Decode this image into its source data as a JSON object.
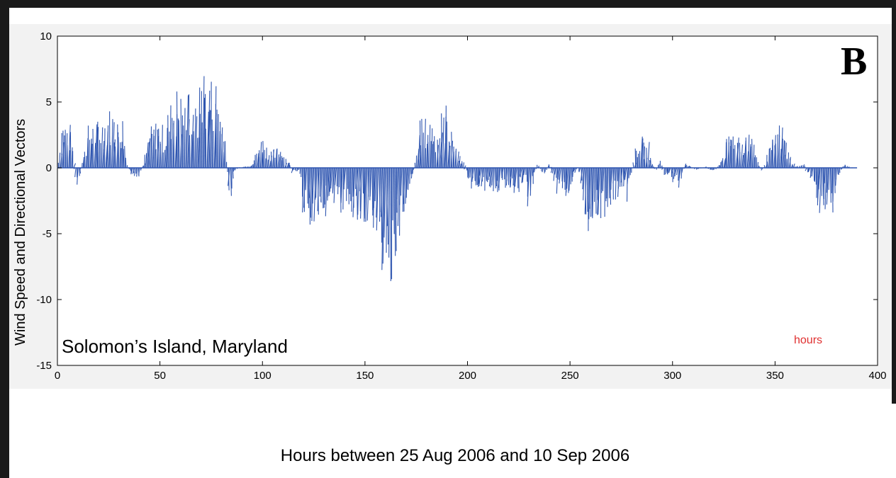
{
  "panel_letter": "B",
  "location_label": "Solomon’s Island, Maryland",
  "hours_annotation": "hours",
  "colors": {
    "vectors": "#2E55B0",
    "axes": "#000000",
    "annotation": "#E03030",
    "plot_background": "#F2F2F2",
    "frame": "#1A1A1A"
  },
  "chart_data": {
    "type": "quiver",
    "title": "",
    "xlabel": "Hours between 25 Aug 2006 and 10 Sep 2006",
    "ylabel": "Wind Speed  and Directional Vectors",
    "xlim": [
      0,
      400
    ],
    "ylim": [
      -15,
      10
    ],
    "xticks": [
      "0",
      "50",
      "100",
      "150",
      "200",
      "250",
      "300",
      "350",
      "400"
    ],
    "yticks": [
      "10",
      "5",
      "0",
      "-5",
      "-10",
      "-15"
    ],
    "grid": false,
    "envelope": [
      [
        0,
        0
      ],
      [
        2,
        3.6
      ],
      [
        5,
        3.7
      ],
      [
        7,
        2.5
      ],
      [
        9,
        -1
      ],
      [
        10,
        -2.2
      ],
      [
        12,
        0.5
      ],
      [
        15,
        3.3
      ],
      [
        18,
        3.6
      ],
      [
        22,
        3.9
      ],
      [
        26,
        4.7
      ],
      [
        28,
        4.2
      ],
      [
        30,
        3.5
      ],
      [
        32,
        4.1
      ],
      [
        34,
        0.3
      ],
      [
        36,
        -0.6
      ],
      [
        38,
        -1.3
      ],
      [
        40,
        -0.8
      ],
      [
        42,
        0.5
      ],
      [
        44,
        2.8
      ],
      [
        47,
        3.6
      ],
      [
        50,
        3.8
      ],
      [
        52,
        2.9
      ],
      [
        54,
        4.5
      ],
      [
        56,
        5.7
      ],
      [
        58,
        6.3
      ],
      [
        60,
        5.9
      ],
      [
        62,
        5.5
      ],
      [
        64,
        6.4
      ],
      [
        66,
        5.2
      ],
      [
        68,
        4.3
      ],
      [
        70,
        8.2
      ],
      [
        72,
        7.5
      ],
      [
        74,
        6.8
      ],
      [
        76,
        7.3
      ],
      [
        78,
        6.8
      ],
      [
        80,
        4.2
      ],
      [
        82,
        2.7
      ],
      [
        83,
        -0.5
      ],
      [
        84,
        -3.0
      ],
      [
        86,
        -0.5
      ],
      [
        88,
        0
      ],
      [
        95,
        0.3
      ],
      [
        98,
        2.0
      ],
      [
        100,
        2.6
      ],
      [
        103,
        1.5
      ],
      [
        106,
        1.4
      ],
      [
        108,
        1.8
      ],
      [
        110,
        1.3
      ],
      [
        113,
        0.5
      ],
      [
        115,
        -0.5
      ],
      [
        118,
        -0.3
      ],
      [
        120,
        -3.5
      ],
      [
        122,
        -4.0
      ],
      [
        124,
        -4.8
      ],
      [
        126,
        -4.2
      ],
      [
        128,
        -3.8
      ],
      [
        130,
        -3.4
      ],
      [
        132,
        -3.8
      ],
      [
        134,
        -3.5
      ],
      [
        136,
        -3.3
      ],
      [
        138,
        -3.8
      ],
      [
        140,
        -3.2
      ],
      [
        142,
        -3.4
      ],
      [
        144,
        -3.6
      ],
      [
        146,
        -4.0
      ],
      [
        148,
        -4.3
      ],
      [
        150,
        -4.8
      ],
      [
        152,
        -5.1
      ],
      [
        154,
        -5.1
      ],
      [
        156,
        -6.2
      ],
      [
        158,
        -7.3
      ],
      [
        160,
        -8.5
      ],
      [
        162,
        -10.0
      ],
      [
        164,
        -9.5
      ],
      [
        166,
        -6.5
      ],
      [
        168,
        -4.8
      ],
      [
        170,
        -3.0
      ],
      [
        172,
        -1.5
      ],
      [
        174,
        -0.2
      ],
      [
        176,
        3.0
      ],
      [
        178,
        4.3
      ],
      [
        180,
        3.4
      ],
      [
        182,
        4.0
      ],
      [
        184,
        3.2
      ],
      [
        186,
        3.4
      ],
      [
        188,
        4.7
      ],
      [
        190,
        5.1
      ],
      [
        192,
        3.0
      ],
      [
        194,
        2.2
      ],
      [
        196,
        1.0
      ],
      [
        198,
        0.5
      ],
      [
        200,
        -0.8
      ],
      [
        202,
        -1.7
      ],
      [
        204,
        -2.0
      ],
      [
        206,
        -1.2
      ],
      [
        208,
        -2.0
      ],
      [
        210,
        -2.2
      ],
      [
        212,
        -1.6
      ],
      [
        214,
        -2.0
      ],
      [
        216,
        -1.7
      ],
      [
        218,
        -1.9
      ],
      [
        220,
        -1.5
      ],
      [
        222,
        -1.8
      ],
      [
        224,
        -2.3
      ],
      [
        226,
        -1.6
      ],
      [
        228,
        -1.0
      ],
      [
        230,
        -3.0
      ],
      [
        232,
        -1.3
      ],
      [
        234,
        0.3
      ],
      [
        236,
        -0.2
      ],
      [
        238,
        -0.5
      ],
      [
        240,
        0.4
      ],
      [
        242,
        -0.8
      ],
      [
        244,
        -2.0
      ],
      [
        246,
        -2.2
      ],
      [
        248,
        -2.3
      ],
      [
        250,
        -1.8
      ],
      [
        252,
        -0.8
      ],
      [
        254,
        0
      ],
      [
        256,
        -1.5
      ],
      [
        258,
        -5.3
      ],
      [
        260,
        -4.5
      ],
      [
        262,
        -4.0
      ],
      [
        264,
        -4.3
      ],
      [
        266,
        -4.5
      ],
      [
        268,
        -3.0
      ],
      [
        270,
        -3.5
      ],
      [
        272,
        -2.5
      ],
      [
        274,
        -3.0
      ],
      [
        276,
        -2.1
      ],
      [
        278,
        -2.6
      ],
      [
        280,
        -0.5
      ],
      [
        282,
        1.5
      ],
      [
        284,
        2.7
      ],
      [
        286,
        1.8
      ],
      [
        288,
        2.0
      ],
      [
        290,
        0.5
      ],
      [
        292,
        -0.3
      ],
      [
        294,
        0.8
      ],
      [
        296,
        -0.6
      ],
      [
        298,
        -0.8
      ],
      [
        300,
        -1.2
      ],
      [
        302,
        -0.5
      ],
      [
        304,
        -2.0
      ],
      [
        306,
        0.5
      ],
      [
        308,
        0.2
      ],
      [
        312,
        -0.2
      ],
      [
        316,
        0.1
      ],
      [
        320,
        -0.3
      ],
      [
        322,
        0.1
      ],
      [
        324,
        0.8
      ],
      [
        326,
        2.0
      ],
      [
        328,
        2.8
      ],
      [
        330,
        3.2
      ],
      [
        332,
        2.7
      ],
      [
        334,
        2.5
      ],
      [
        336,
        3.0
      ],
      [
        338,
        2.6
      ],
      [
        340,
        1.8
      ],
      [
        342,
        0.3
      ],
      [
        344,
        -0.2
      ],
      [
        346,
        1.0
      ],
      [
        348,
        2.0
      ],
      [
        350,
        2.8
      ],
      [
        352,
        3.5
      ],
      [
        354,
        3.0
      ],
      [
        356,
        1.5
      ],
      [
        358,
        0.6
      ],
      [
        360,
        0.1
      ],
      [
        364,
        0.3
      ],
      [
        366,
        -0.5
      ],
      [
        368,
        -0.8
      ],
      [
        370,
        -2.2
      ],
      [
        372,
        -4.0
      ],
      [
        374,
        -3.3
      ],
      [
        376,
        -3.0
      ],
      [
        378,
        -3.7
      ],
      [
        380,
        -1.5
      ],
      [
        382,
        -0.3
      ],
      [
        384,
        0.5
      ],
      [
        386,
        0
      ],
      [
        388,
        0
      ]
    ]
  }
}
